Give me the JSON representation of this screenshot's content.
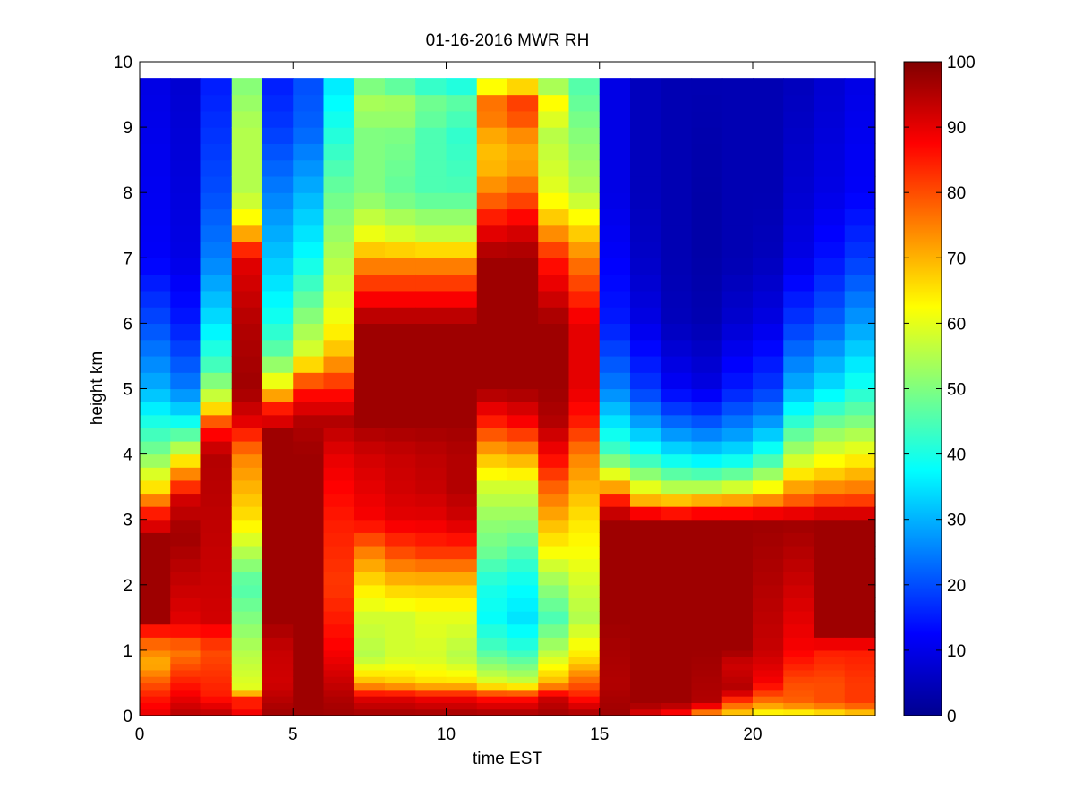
{
  "chart_data": {
    "type": "heatmap",
    "title": "01-16-2016 MWR RH",
    "xlabel": "time EST",
    "ylabel": "height km",
    "xlim": [
      0,
      24
    ],
    "ylim": [
      0,
      10
    ],
    "x_ticks": [
      "0",
      "5",
      "10",
      "15",
      "20"
    ],
    "y_ticks": [
      "0",
      "1",
      "2",
      "3",
      "4",
      "5",
      "6",
      "7",
      "8",
      "9",
      "10"
    ],
    "colorbar": {
      "colormap": "jet",
      "range": [
        0,
        100
      ],
      "ticks": [
        "0",
        "10",
        "20",
        "30",
        "40",
        "50",
        "60",
        "70",
        "80",
        "90",
        "100"
      ]
    },
    "grid": false,
    "time_hours": [
      0,
      1,
      2,
      3,
      4,
      5,
      6,
      7,
      8,
      9,
      10,
      11,
      12,
      13,
      14,
      15,
      16,
      17,
      18,
      19,
      20,
      21,
      22,
      23
    ],
    "height_levels_km": [
      0.0,
      0.1,
      0.2,
      0.3,
      0.4,
      0.5,
      0.6,
      0.7,
      0.8,
      0.9,
      1.0,
      1.2,
      1.4,
      1.6,
      1.8,
      2.0,
      2.2,
      2.4,
      2.6,
      2.8,
      3.0,
      3.2,
      3.4,
      3.6,
      3.8,
      4.0,
      4.2,
      4.4,
      4.6,
      4.8,
      5.0,
      5.25,
      5.5,
      5.75,
      6.0,
      6.25,
      6.5,
      6.75,
      7.0,
      7.25,
      7.5,
      7.75,
      8.0,
      8.25,
      8.5,
      8.75,
      9.0,
      9.25,
      9.5,
      9.75
    ],
    "profile_breakpoints": [
      {
        "h": [
          0.0,
          0.3,
          0.8,
          1.2,
          1.5,
          2.7,
          3.1,
          3.5,
          4.0,
          4.5,
          5.0,
          6.0,
          7.0,
          9.75
        ],
        "v": [
          90,
          85,
          70,
          80,
          97,
          97,
          85,
          65,
          50,
          40,
          30,
          20,
          12,
          10
        ]
      },
      {
        "h": [
          0.0,
          0.5,
          1.0,
          1.4,
          2.8,
          3.3,
          3.8,
          4.2,
          4.6,
          5.0,
          6.0,
          7.0,
          9.75
        ],
        "v": [
          95,
          85,
          75,
          90,
          97,
          92,
          70,
          50,
          35,
          25,
          15,
          10,
          8
        ]
      },
      {
        "h": [
          0.0,
          0.3,
          1.0,
          1.5,
          4.0,
          4.4,
          4.8,
          5.3,
          6.0,
          7.0,
          8.0,
          9.75
        ],
        "v": [
          95,
          85,
          80,
          92,
          95,
          85,
          60,
          45,
          35,
          25,
          20,
          15
        ]
      },
      {
        "h": [
          0.0,
          0.1,
          0.2,
          0.3,
          0.4,
          1.0,
          1.5,
          2.0,
          2.5,
          3.0,
          3.5,
          4.0,
          4.5,
          5.0,
          6.0,
          7.0,
          7.5,
          8.0,
          9.0,
          9.75
        ],
        "v": [
          97,
          80,
          90,
          80,
          60,
          55,
          50,
          45,
          55,
          65,
          70,
          75,
          90,
          97,
          95,
          90,
          65,
          55,
          55,
          50
        ]
      },
      {
        "h": [
          0.0,
          0.5,
          1.0,
          1.5,
          4.3,
          4.7,
          5.0,
          5.5,
          6.0,
          7.0,
          8.0,
          9.0,
          9.75
        ],
        "v": [
          97,
          92,
          93,
          97,
          97,
          85,
          65,
          48,
          40,
          32,
          25,
          18,
          15
        ]
      },
      {
        "h": [
          0.0,
          0.3,
          0.5,
          4.0,
          4.5,
          5.0,
          5.5,
          6.5,
          7.0,
          8.0,
          9.0,
          9.75
        ],
        "v": [
          97,
          97,
          97,
          97,
          95,
          85,
          60,
          45,
          38,
          30,
          22,
          20
        ]
      },
      {
        "h": [
          0.0,
          0.3,
          1.0,
          2.0,
          3.0,
          4.0,
          4.5,
          5.0,
          5.5,
          6.0,
          7.0,
          8.0,
          9.0,
          9.75
        ],
        "v": [
          97,
          95,
          88,
          82,
          85,
          90,
          95,
          85,
          70,
          62,
          55,
          48,
          40,
          35
        ]
      },
      {
        "h": [
          0.0,
          0.3,
          0.5,
          0.9,
          1.5,
          2.0,
          2.5,
          3.0,
          3.5,
          4.0,
          4.5,
          6.0,
          6.5,
          7.0,
          7.3,
          8.0,
          9.0,
          9.3,
          9.75
        ],
        "v": [
          97,
          90,
          70,
          55,
          58,
          65,
          75,
          88,
          90,
          92,
          97,
          97,
          85,
          72,
          62,
          50,
          50,
          55,
          48
        ]
      },
      {
        "h": [
          0.0,
          0.3,
          0.5,
          0.9,
          1.5,
          2.0,
          2.5,
          3.0,
          3.5,
          4.0,
          4.5,
          6.0,
          6.5,
          7.0,
          7.3,
          8.0,
          9.0,
          9.3,
          9.75
        ],
        "v": [
          97,
          90,
          68,
          58,
          58,
          68,
          80,
          90,
          92,
          93,
          97,
          97,
          85,
          72,
          60,
          47,
          50,
          55,
          44
        ]
      },
      {
        "h": [
          0.0,
          0.3,
          0.5,
          0.9,
          1.5,
          2.0,
          2.5,
          3.0,
          3.5,
          4.0,
          4.5,
          6.0,
          6.5,
          7.0,
          7.3,
          8.0,
          9.0,
          9.3,
          9.75
        ],
        "v": [
          97,
          88,
          66,
          58,
          60,
          68,
          82,
          90,
          93,
          94,
          97,
          97,
          85,
          72,
          58,
          45,
          45,
          50,
          40
        ]
      },
      {
        "h": [
          0.0,
          0.3,
          0.5,
          0.9,
          1.5,
          2.0,
          2.5,
          3.0,
          3.5,
          4.0,
          4.5,
          6.0,
          6.5,
          7.0,
          7.3,
          8.0,
          9.0,
          9.3,
          9.75
        ],
        "v": [
          97,
          88,
          66,
          55,
          60,
          68,
          82,
          92,
          95,
          95,
          97,
          97,
          85,
          72,
          58,
          45,
          42,
          48,
          38
        ]
      },
      {
        "h": [
          0.0,
          0.3,
          0.5,
          1.0,
          1.5,
          2.0,
          2.5,
          3.0,
          3.5,
          4.0,
          4.5,
          5.0,
          5.5,
          6.5,
          7.0,
          7.5,
          8.0,
          8.5,
          9.0,
          9.3,
          9.5,
          9.75
        ],
        "v": [
          97,
          85,
          60,
          45,
          38,
          40,
          48,
          52,
          58,
          70,
          85,
          97,
          97,
          97,
          97,
          88,
          75,
          68,
          72,
          80,
          70,
          55
        ]
      },
      {
        "h": [
          0.0,
          0.3,
          0.5,
          1.0,
          1.5,
          2.0,
          2.5,
          3.0,
          3.5,
          4.0,
          4.5,
          5.0,
          5.5,
          6.5,
          7.0,
          7.5,
          8.0,
          8.5,
          9.0,
          9.3,
          9.5,
          9.75
        ],
        "v": [
          97,
          85,
          58,
          42,
          35,
          38,
          45,
          52,
          58,
          72,
          88,
          97,
          97,
          97,
          97,
          90,
          78,
          70,
          75,
          85,
          75,
          58
        ]
      },
      {
        "h": [
          0.0,
          0.3,
          0.5,
          1.0,
          1.5,
          2.0,
          2.5,
          3.0,
          3.5,
          4.0,
          4.5,
          5.0,
          6.0,
          7.0,
          7.5,
          8.0,
          9.0,
          9.3,
          9.75
        ],
        "v": [
          97,
          92,
          70,
          55,
          45,
          52,
          62,
          70,
          78,
          88,
          95,
          97,
          97,
          85,
          70,
          60,
          55,
          65,
          50
        ]
      },
      {
        "h": [
          0.0,
          0.3,
          0.6,
          0.9,
          1.5,
          2.0,
          2.5,
          3.0,
          3.5,
          4.0,
          4.5,
          5.0,
          6.0,
          7.0,
          7.5,
          8.0,
          9.0,
          9.75
        ],
        "v": [
          97,
          85,
          75,
          65,
          55,
          58,
          62,
          65,
          70,
          75,
          85,
          90,
          90,
          75,
          65,
          55,
          50,
          45
        ]
      },
      {
        "h": [
          0.0,
          0.5,
          1.5,
          3.0,
          3.3,
          3.6,
          4.0,
          4.5,
          5.0,
          6.0,
          7.0,
          8.0,
          9.75
        ],
        "v": [
          97,
          95,
          97,
          97,
          85,
          65,
          45,
          35,
          25,
          15,
          12,
          10,
          10
        ]
      },
      {
        "h": [
          0.0,
          0.2,
          1.0,
          3.0,
          3.3,
          3.6,
          4.0,
          4.5,
          5.0,
          6.0,
          7.0,
          8.0,
          9.75
        ],
        "v": [
          90,
          97,
          97,
          97,
          70,
          55,
          40,
          28,
          18,
          10,
          7,
          6,
          6
        ]
      },
      {
        "h": [
          0.0,
          0.2,
          1.0,
          3.0,
          3.2,
          3.5,
          3.8,
          4.2,
          4.6,
          5.0,
          6.0,
          7.0,
          8.0,
          9.75
        ],
        "v": [
          85,
          97,
          97,
          97,
          75,
          55,
          42,
          30,
          20,
          12,
          6,
          5,
          5,
          5
        ]
      },
      {
        "h": [
          0.0,
          0.2,
          1.0,
          3.0,
          3.2,
          3.5,
          3.8,
          4.2,
          4.6,
          5.0,
          6.0,
          7.0,
          8.0,
          9.75
        ],
        "v": [
          70,
          95,
          97,
          97,
          78,
          55,
          40,
          28,
          18,
          10,
          5,
          4,
          4,
          5
        ]
      },
      {
        "h": [
          0.0,
          0.2,
          0.4,
          0.8,
          1.0,
          3.0,
          3.2,
          3.5,
          3.8,
          4.2,
          4.6,
          5.0,
          6.0,
          7.0,
          8.0,
          9.75
        ],
        "v": [
          65,
          80,
          95,
          92,
          97,
          97,
          78,
          58,
          42,
          30,
          22,
          15,
          8,
          5,
          5,
          5
        ]
      },
      {
        "h": [
          0.0,
          0.2,
          0.5,
          1.0,
          3.0,
          3.2,
          3.5,
          3.8,
          4.2,
          4.6,
          5.0,
          6.0,
          7.0,
          8.0,
          9.75
        ],
        "v": [
          60,
          75,
          88,
          93,
          97,
          80,
          62,
          48,
          35,
          25,
          18,
          10,
          6,
          5,
          5
        ]
      },
      {
        "h": [
          0.0,
          0.2,
          0.5,
          1.0,
          3.0,
          3.2,
          3.6,
          4.0,
          4.5,
          5.0,
          6.0,
          7.0,
          8.0,
          9.75
        ],
        "v": [
          60,
          78,
          80,
          88,
          97,
          82,
          68,
          55,
          42,
          30,
          18,
          10,
          8,
          6
        ]
      },
      {
        "h": [
          0.0,
          0.2,
          0.5,
          1.0,
          1.3,
          3.0,
          3.2,
          3.6,
          4.0,
          4.5,
          5.0,
          6.0,
          7.0,
          8.0,
          9.75
        ],
        "v": [
          62,
          80,
          80,
          85,
          97,
          97,
          85,
          70,
          60,
          48,
          35,
          22,
          14,
          10,
          8
        ]
      },
      {
        "h": [
          0.0,
          0.2,
          0.5,
          1.0,
          1.3,
          3.0,
          3.2,
          3.5,
          4.0,
          4.5,
          5.0,
          6.0,
          7.0,
          8.0,
          9.75
        ],
        "v": [
          65,
          82,
          82,
          85,
          97,
          97,
          85,
          75,
          62,
          50,
          40,
          28,
          18,
          12,
          10
        ]
      }
    ]
  }
}
